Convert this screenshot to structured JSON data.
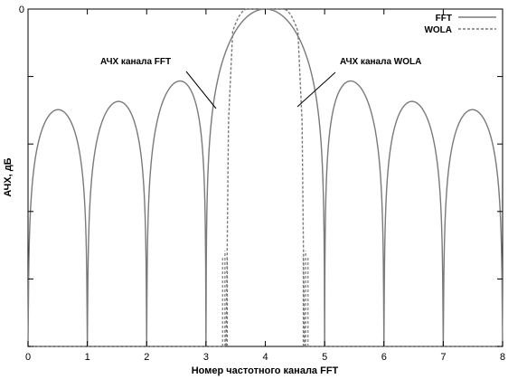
{
  "chart_data": {
    "type": "line",
    "xlabel": "Номер частотного канала FFT",
    "ylabel": "АЧХ, дБ",
    "xlim": [
      0,
      8
    ],
    "ylim": [
      -60,
      0
    ],
    "x_ticks": [
      "0",
      "1",
      "2",
      "3",
      "4",
      "5",
      "6",
      "7",
      "8"
    ],
    "y_tick_values": [
      0,
      -12,
      -24,
      -36,
      -48,
      -60
    ],
    "y_tick_labels": [
      "0",
      "",
      "",
      "",
      "",
      ""
    ],
    "grid": false,
    "legend_position": "top-right",
    "series": [
      {
        "name": "FFT",
        "style": "solid",
        "color": "#7a7a7a"
      },
      {
        "name": "WOLA",
        "style": "dashed",
        "color": "#7a7a7a"
      }
    ],
    "annotations": [
      {
        "text": "АЧХ канала FFT",
        "target_series": "FFT"
      },
      {
        "text": "АЧХ канала WOLA",
        "target_series": "WOLA"
      }
    ]
  }
}
